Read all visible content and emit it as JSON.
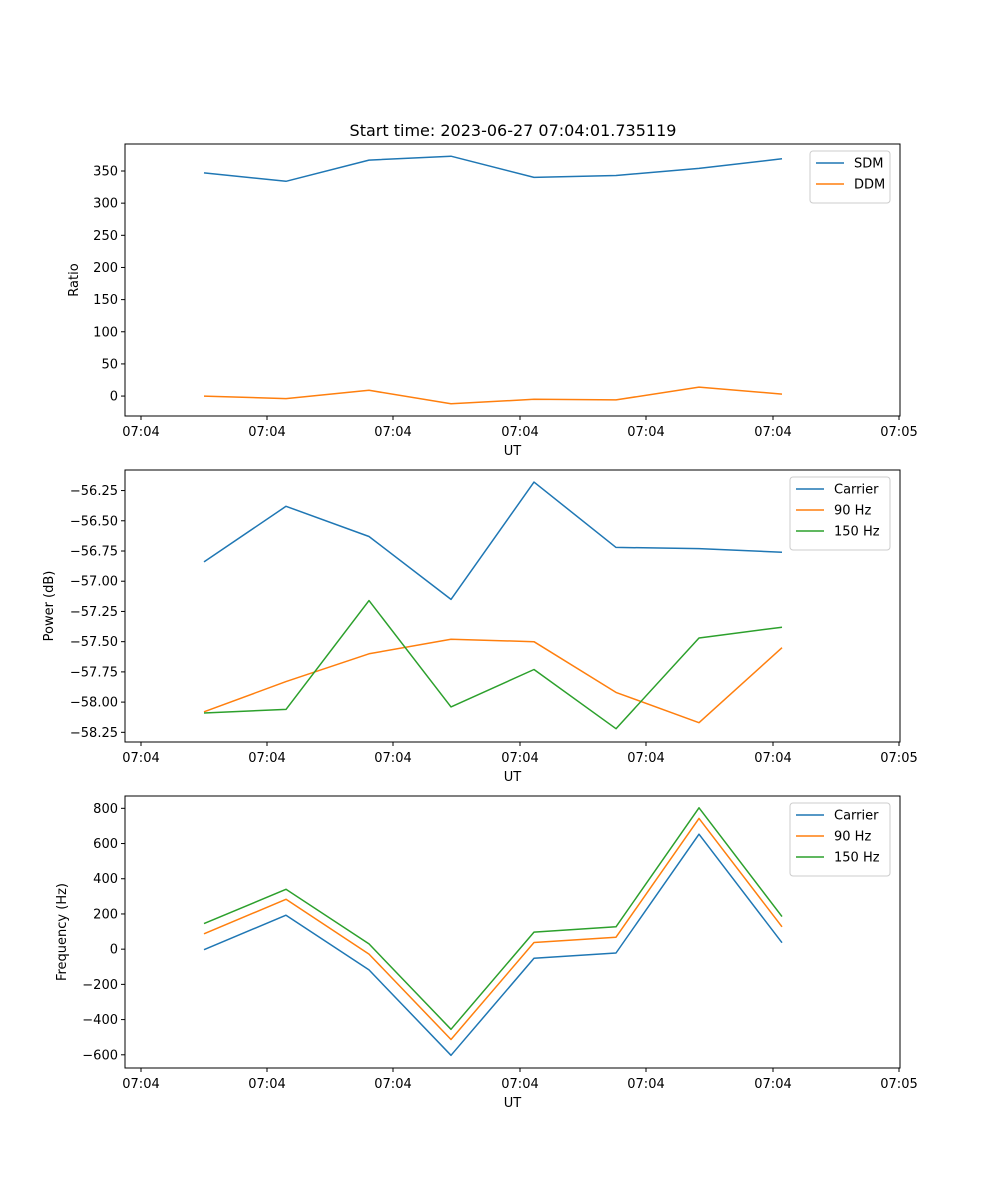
{
  "figure_title": "Start time: 2023-06-27 07:04:01.735119",
  "chart_data": [
    {
      "type": "line",
      "title": "Start time: 2023-06-27 07:04:01.735119",
      "xlabel": "UT",
      "ylabel": "Ratio",
      "x_tick_labels": [
        "07:04",
        "07:04",
        "07:04",
        "07:04",
        "07:04",
        "07:04",
        "07:05"
      ],
      "y_ticks": [
        0,
        50,
        100,
        150,
        200,
        250,
        300,
        350
      ],
      "ylim": [
        -31,
        392
      ],
      "legend_position": "upper right",
      "series": [
        {
          "name": "SDM",
          "color": "#1f77b4",
          "values": [
            347,
            334,
            367,
            373,
            340,
            343,
            354,
            369
          ]
        },
        {
          "name": "DDM",
          "color": "#ff7f0e",
          "values": [
            0,
            -4,
            9,
            -12,
            -5,
            -6,
            14,
            3
          ]
        }
      ]
    },
    {
      "type": "line",
      "title": "",
      "xlabel": "UT",
      "ylabel": "Power (dB)",
      "x_tick_labels": [
        "07:04",
        "07:04",
        "07:04",
        "07:04",
        "07:04",
        "07:04",
        "07:05"
      ],
      "y_ticks": [
        -58.25,
        -58.0,
        -57.75,
        -57.5,
        -57.25,
        -57.0,
        -56.75,
        -56.5,
        -56.25
      ],
      "y_tick_labels": [
        "−58.25",
        "−58.00",
        "−57.75",
        "−57.50",
        "−57.25",
        "−57.00",
        "−56.75",
        "−56.50",
        "−56.25"
      ],
      "ylim": [
        -58.33,
        -56.08
      ],
      "legend_position": "upper right",
      "series": [
        {
          "name": "Carrier",
          "color": "#1f77b4",
          "values": [
            -56.84,
            -56.38,
            -56.63,
            -57.15,
            -56.18,
            -56.72,
            -56.73,
            -56.76
          ]
        },
        {
          "name": "90 Hz",
          "color": "#ff7f0e",
          "values": [
            -58.08,
            -57.83,
            -57.6,
            -57.48,
            -57.5,
            -57.92,
            -58.17,
            -57.55
          ]
        },
        {
          "name": "150 Hz",
          "color": "#2ca02c",
          "values": [
            -58.09,
            -58.06,
            -57.16,
            -58.04,
            -57.73,
            -58.22,
            -57.47,
            -57.38
          ]
        }
      ]
    },
    {
      "type": "line",
      "title": "",
      "xlabel": "UT",
      "ylabel": "Frequency (Hz)",
      "x_tick_labels": [
        "07:04",
        "07:04",
        "07:04",
        "07:04",
        "07:04",
        "07:04",
        "07:05"
      ],
      "y_ticks": [
        -600,
        -400,
        -200,
        0,
        200,
        400,
        600,
        800
      ],
      "y_tick_labels": [
        "−600",
        "−400",
        "−200",
        "0",
        "200",
        "400",
        "600",
        "800"
      ],
      "ylim": [
        -675,
        870
      ],
      "legend_position": "upper right",
      "series": [
        {
          "name": "Carrier",
          "color": "#1f77b4",
          "values": [
            -3,
            193,
            -118,
            -603,
            -52,
            -22,
            653,
            37
          ]
        },
        {
          "name": "90 Hz",
          "color": "#ff7f0e",
          "values": [
            87,
            283,
            -28,
            -513,
            38,
            68,
            743,
            127
          ]
        },
        {
          "name": "150 Hz",
          "color": "#2ca02c",
          "values": [
            145,
            340,
            30,
            -455,
            97,
            127,
            803,
            185
          ]
        }
      ]
    }
  ]
}
